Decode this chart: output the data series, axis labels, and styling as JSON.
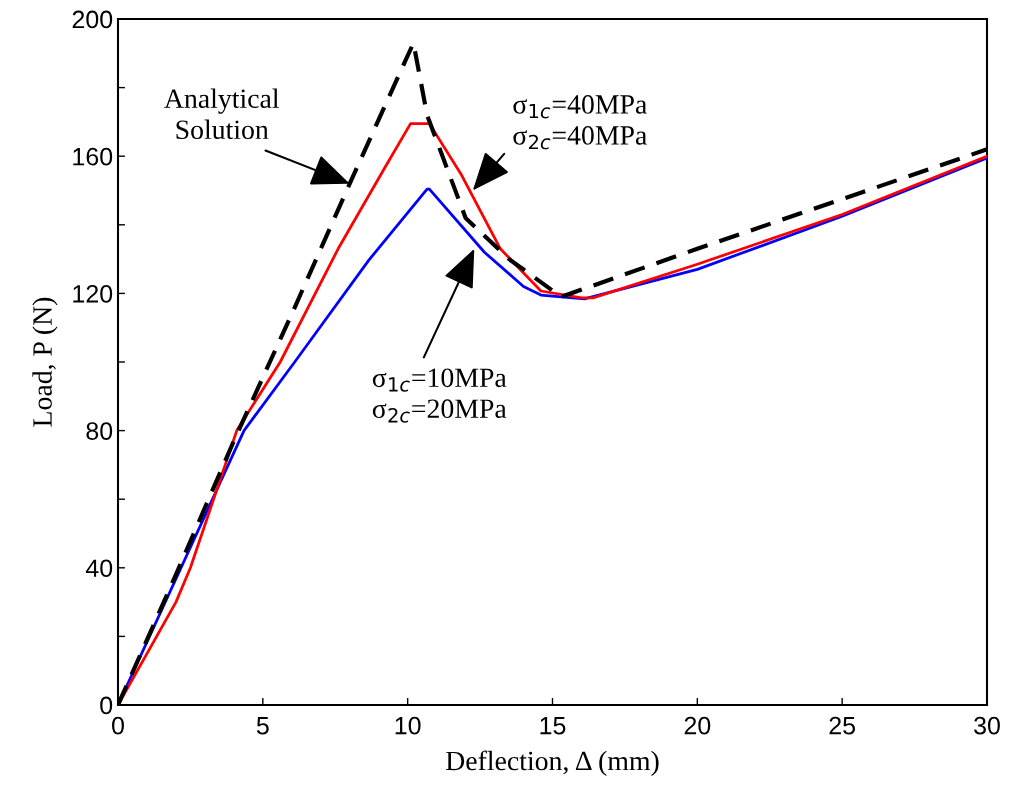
{
  "chart_data": {
    "type": "line",
    "xlabel": "Deflection, Δ (mm)",
    "ylabel": "Load, P (N)",
    "xlim": [
      0,
      30
    ],
    "xticks": [
      0,
      5,
      10,
      15,
      20,
      25,
      30
    ],
    "ylim": [
      0,
      200
    ],
    "yticks": [
      0,
      {
        "value": 20,
        "label": null
      },
      40,
      {
        "value": 60,
        "label": null
      },
      80,
      {
        "value": 100,
        "label": null
      },
      120,
      {
        "value": 140,
        "label": null
      },
      160,
      {
        "value": 180,
        "label": null
      },
      200
    ],
    "grid": false,
    "legend": false,
    "marker": "none",
    "series": [
      {
        "color": "#0000ff",
        "line_style": "solid",
        "x": [
          0,
          4.35,
          6.1,
          8.66,
          10.67,
          10.75,
          12.65,
          14.0,
          14.6,
          16.1,
          20,
          25,
          30
        ],
        "values": [
          0,
          80,
          100,
          129.7,
          150.4,
          150.4,
          132,
          122,
          119.5,
          118.4,
          127,
          142.5,
          159.5
        ]
      },
      {
        "color": "#ff0000",
        "line_style": "solid",
        "x": [
          0,
          2,
          2.5,
          4.1,
          5.6,
          7.6,
          9.2,
          10.1,
          10.75,
          11.86,
          13.2,
          14.6,
          16.0,
          16.4,
          20,
          25,
          30
        ],
        "values": [
          0,
          30,
          40,
          80,
          100,
          133,
          156.5,
          169.5,
          169.5,
          154.5,
          133,
          120.7,
          118.7,
          118.7,
          128.5,
          143,
          160
        ]
      },
      {
        "color": "#000000",
        "line_style": "dashed",
        "x": [
          0,
          2,
          4,
          6,
          8,
          9.5,
          10.2,
          10.67,
          12,
          13.5,
          15.3,
          20,
          25,
          30
        ],
        "values": [
          0,
          38,
          77,
          114,
          152,
          180,
          193,
          172,
          142,
          130,
          119,
          133,
          147.5,
          162
        ]
      }
    ],
    "annotations": [
      {
        "text": "Analytical\nSolution",
        "x": 8.0,
        "y": 152
      },
      {
        "text": "σ$_{1c}$=40MPa\nσ$_{2c}$=40MPa",
        "x": 12.25,
        "y": 150
      },
      {
        "text": "σ$_{1c}$=10MPa\nσ$_{2c}$=20MPa",
        "x": 12.3,
        "y": 133
      }
    ]
  }
}
